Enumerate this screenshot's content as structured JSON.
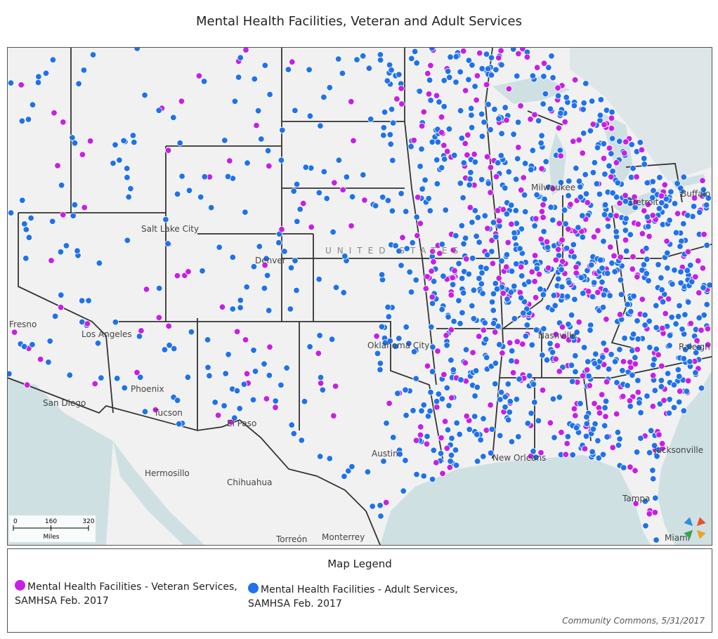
{
  "title": "Mental Health Facilities, Veteran and Adult Services",
  "map": {
    "country_label": "UNITED STATES",
    "labels": [
      "Hermosillo",
      "Chihuahua",
      "Torreón",
      "Monterrey",
      "Phoenix",
      "Tucson",
      "San Diego",
      "Los Angeles",
      "Fresno",
      "Denver",
      "Oklahoma City",
      "Austin",
      "El Paso",
      "New Orleans",
      "Nashville",
      "Raleigh",
      "Detroit",
      "Milwaukee",
      "Jacksonville",
      "Tampa",
      "Miami",
      "Salt Lake City",
      "Buffalo"
    ],
    "scale": {
      "ticks": [
        0,
        160,
        320
      ],
      "unit": "Miles"
    }
  },
  "legend": {
    "title": "Map Legend",
    "items": [
      {
        "label": "Mental Health Facilities - Veteran Services, SAMHSA Feb. 2017",
        "color": "#c81ee6"
      },
      {
        "label": "Mental Health Facilities - Adult Services, SAMHSA Feb. 2017",
        "color": "#1f72ea"
      }
    ]
  },
  "credit": "Community Commons, 5/31/2017"
}
